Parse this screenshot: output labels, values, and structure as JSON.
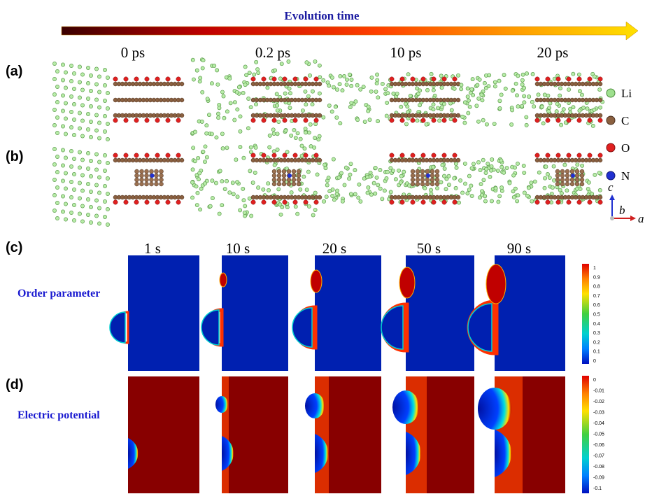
{
  "header": {
    "title": "Evolution time"
  },
  "panels": {
    "a": "(a)",
    "b": "(b)",
    "c": "(c)",
    "d": "(d)"
  },
  "md_times": [
    "0 ps",
    "0.2 ps",
    "10 ps",
    "20 ps"
  ],
  "legend": [
    "Li",
    "C",
    "O",
    "N"
  ],
  "axes": {
    "c": "c",
    "b": "b",
    "a": "a"
  },
  "pf_times": [
    "1 s",
    "10 s",
    "20 s",
    "50 s",
    "90 s"
  ],
  "rows": {
    "order": "Order parameter",
    "potential": "Electric potential"
  },
  "colorbar_order": [
    "1",
    "0.9",
    "0.8",
    "0.7",
    "0.6",
    "0.5",
    "0.4",
    "0.3",
    "0.2",
    "0.1",
    "0"
  ],
  "colorbar_potential": [
    "0",
    "-0.01",
    "-0.02",
    "-0.03",
    "-0.04",
    "-0.05",
    "-0.06",
    "-0.07",
    "-0.08",
    "-0.09",
    "-0.1"
  ]
}
